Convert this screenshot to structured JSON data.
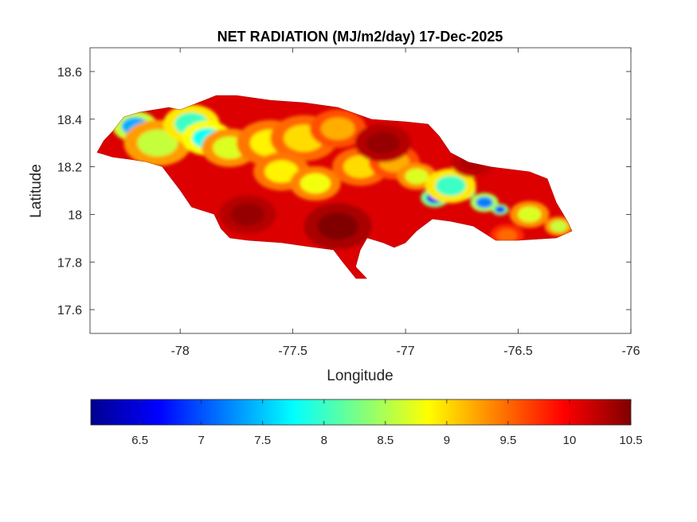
{
  "chart_data": {
    "type": "heatmap",
    "title": "NET RADIATION (MJ/m2/day) 17-Dec-2025",
    "xlabel": "Longitude",
    "ylabel": "Latitude",
    "xlim": [
      -78.4,
      -76
    ],
    "ylim": [
      17.5,
      18.7
    ],
    "x_ticks": [
      -78,
      -77.5,
      -77,
      -76.5,
      -76
    ],
    "x_tick_labels": [
      "-78",
      "-77.5",
      "-77",
      "-76.5",
      "-76"
    ],
    "y_ticks": [
      17.6,
      17.8,
      18,
      18.2,
      18.4,
      18.6
    ],
    "y_tick_labels": [
      "17.6",
      "17.8",
      "18",
      "18.2",
      "18.4",
      "18.6"
    ],
    "colormap": "jet",
    "colorbar": {
      "location": "bottom",
      "range": [
        6.1,
        10.5
      ],
      "ticks": [
        6.5,
        7,
        7.5,
        8,
        8.5,
        9,
        9.5,
        10,
        10.5
      ],
      "tick_labels": [
        "6.5",
        "7",
        "7.5",
        "8",
        "8.5",
        "9",
        "9.5",
        "10",
        "10.5"
      ]
    },
    "region_outline": [
      [
        -78.37,
        18.26
      ],
      [
        -78.34,
        18.31
      ],
      [
        -78.3,
        18.35
      ],
      [
        -78.25,
        18.41
      ],
      [
        -78.18,
        18.43
      ],
      [
        -78.05,
        18.45
      ],
      [
        -78.0,
        18.44
      ],
      [
        -77.92,
        18.47
      ],
      [
        -77.84,
        18.5
      ],
      [
        -77.75,
        18.5
      ],
      [
        -77.6,
        18.48
      ],
      [
        -77.45,
        18.47
      ],
      [
        -77.3,
        18.45
      ],
      [
        -77.15,
        18.4
      ],
      [
        -77.0,
        18.39
      ],
      [
        -76.9,
        18.38
      ],
      [
        -76.85,
        18.33
      ],
      [
        -76.8,
        18.26
      ],
      [
        -76.72,
        18.22
      ],
      [
        -76.62,
        18.2
      ],
      [
        -76.45,
        18.18
      ],
      [
        -76.37,
        18.15
      ],
      [
        -76.33,
        18.05
      ],
      [
        -76.28,
        17.97
      ],
      [
        -76.26,
        17.93
      ],
      [
        -76.33,
        17.9
      ],
      [
        -76.5,
        17.89
      ],
      [
        -76.6,
        17.89
      ],
      [
        -76.7,
        17.95
      ],
      [
        -76.8,
        17.97
      ],
      [
        -76.88,
        17.98
      ],
      [
        -76.95,
        17.93
      ],
      [
        -77.0,
        17.88
      ],
      [
        -77.05,
        17.86
      ],
      [
        -77.1,
        17.88
      ],
      [
        -77.17,
        17.9
      ],
      [
        -77.2,
        17.85
      ],
      [
        -77.22,
        17.78
      ],
      [
        -77.19,
        17.75
      ],
      [
        -77.17,
        17.73
      ],
      [
        -77.22,
        17.73
      ],
      [
        -77.28,
        17.8
      ],
      [
        -77.32,
        17.85
      ],
      [
        -77.4,
        17.86
      ],
      [
        -77.55,
        17.88
      ],
      [
        -77.7,
        17.89
      ],
      [
        -77.78,
        17.9
      ],
      [
        -77.82,
        17.94
      ],
      [
        -77.85,
        18.0
      ],
      [
        -77.95,
        18.03
      ],
      [
        -78.0,
        18.1
      ],
      [
        -78.08,
        18.2
      ],
      [
        -78.15,
        18.22
      ],
      [
        -78.22,
        18.23
      ],
      [
        -78.3,
        18.24
      ]
    ],
    "field_base_value": 10.1,
    "anomalies": [
      {
        "lon": -78.2,
        "lat": 18.37,
        "value": 7.4,
        "radius": 0.08
      },
      {
        "lon": -78.1,
        "lat": 18.3,
        "value": 8.6,
        "radius": 0.12
      },
      {
        "lon": -77.95,
        "lat": 18.38,
        "value": 8.0,
        "radius": 0.1
      },
      {
        "lon": -77.88,
        "lat": 18.32,
        "value": 7.8,
        "radius": 0.09
      },
      {
        "lon": -77.78,
        "lat": 18.28,
        "value": 8.7,
        "radius": 0.1
      },
      {
        "lon": -77.6,
        "lat": 18.3,
        "value": 8.9,
        "radius": 0.12
      },
      {
        "lon": -77.45,
        "lat": 18.32,
        "value": 9.0,
        "radius": 0.12
      },
      {
        "lon": -77.3,
        "lat": 18.36,
        "value": 9.2,
        "radius": 0.1
      },
      {
        "lon": -77.55,
        "lat": 18.18,
        "value": 8.9,
        "radius": 0.1
      },
      {
        "lon": -77.4,
        "lat": 18.13,
        "value": 8.8,
        "radius": 0.09
      },
      {
        "lon": -77.2,
        "lat": 18.2,
        "value": 9.0,
        "radius": 0.1
      },
      {
        "lon": -77.05,
        "lat": 18.22,
        "value": 9.2,
        "radius": 0.09
      },
      {
        "lon": -76.95,
        "lat": 18.16,
        "value": 8.7,
        "radius": 0.07
      },
      {
        "lon": -76.87,
        "lat": 18.07,
        "value": 6.8,
        "radius": 0.05
      },
      {
        "lon": -76.75,
        "lat": 18.1,
        "value": 6.7,
        "radius": 0.05
      },
      {
        "lon": -76.65,
        "lat": 18.05,
        "value": 7.2,
        "radius": 0.05
      },
      {
        "lon": -76.58,
        "lat": 18.02,
        "value": 6.9,
        "radius": 0.03
      },
      {
        "lon": -76.8,
        "lat": 18.12,
        "value": 8.0,
        "radius": 0.09
      },
      {
        "lon": -76.45,
        "lat": 18.0,
        "value": 8.7,
        "radius": 0.07
      },
      {
        "lon": -76.32,
        "lat": 17.95,
        "value": 8.6,
        "radius": 0.05
      },
      {
        "lon": -76.55,
        "lat": 17.91,
        "value": 9.5,
        "radius": 0.06
      },
      {
        "lon": -77.3,
        "lat": 17.95,
        "value": 10.5,
        "radius": 0.12
      },
      {
        "lon": -77.7,
        "lat": 18.0,
        "value": 10.4,
        "radius": 0.1
      },
      {
        "lon": -77.1,
        "lat": 18.3,
        "value": 10.4,
        "radius": 0.1
      },
      {
        "lon": -76.7,
        "lat": 18.22,
        "value": 10.3,
        "radius": 0.08
      }
    ]
  }
}
